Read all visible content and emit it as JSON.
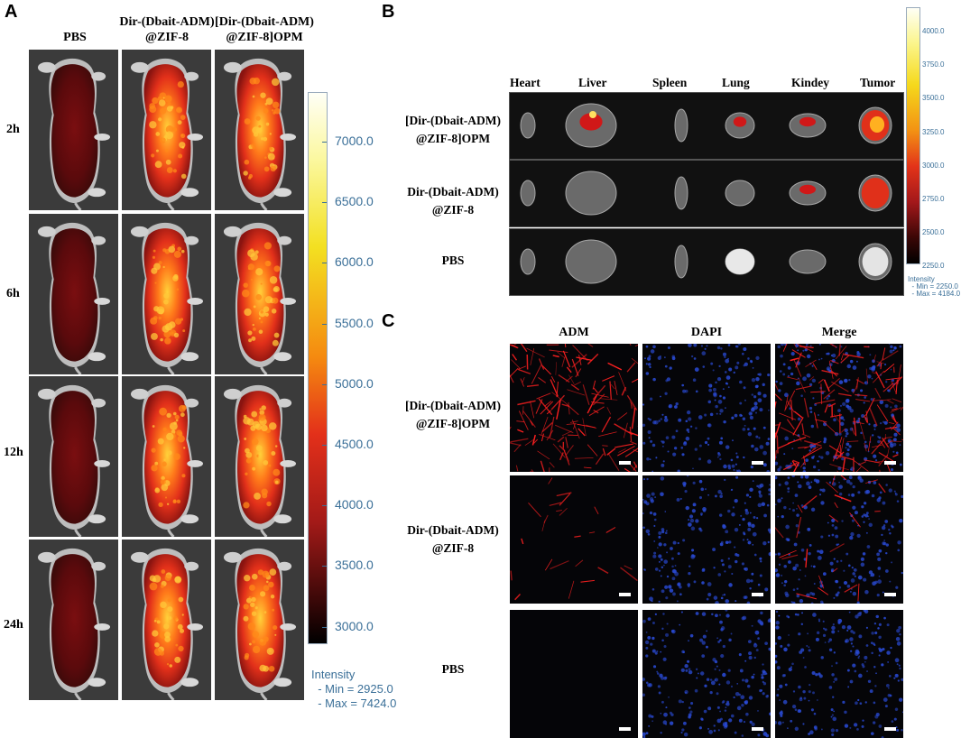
{
  "panelA": {
    "letter": "A",
    "columns": [
      "PBS",
      "Dir-(Dbait-ADM)\n@ZIF-8",
      "[Dir-(Dbait-ADM)\n@ZIF-8]OPM"
    ],
    "rows": [
      "2h",
      "6h",
      "12h",
      "24h"
    ],
    "colorbar": {
      "ticks": [
        "7000.0",
        "6500.0",
        "6000.0",
        "5500.0",
        "5000.0",
        "4500.0",
        "4000.0",
        "3500.0",
        "3000.0"
      ],
      "intensity_label": "Intensity",
      "min_text": "  - Min = 2925.0",
      "max_text": "  - Max = 7424.0"
    }
  },
  "panelB": {
    "letter": "B",
    "organs": [
      "Heart",
      "Liver",
      "Spleen",
      "Lung",
      "Kindey",
      "Tumor"
    ],
    "groups": [
      "[Dir-(Dbait-ADM)\n@ZIF-8]OPM",
      "Dir-(Dbait-ADM)\n@ZIF-8",
      "PBS"
    ],
    "colorbar": {
      "ticks": [
        "4000.0",
        "3750.0",
        "3500.0",
        "3250.0",
        "3000.0",
        "2750.0",
        "2500.0",
        "2250.0"
      ],
      "intensity_label": "Intensity",
      "min_text": "  - Min = 2250.0",
      "max_text": "  - Max = 4184.0"
    }
  },
  "panelC": {
    "letter": "C",
    "channels": [
      "ADM",
      "DAPI",
      "Merge"
    ],
    "groups": [
      "[Dir-(Dbait-ADM)\n@ZIF-8]OPM",
      "Dir-(Dbait-ADM)\n@ZIF-8",
      "PBS"
    ]
  },
  "colors": {
    "text": "#000000",
    "colorbar_text": "#3a6f98",
    "adm_red": "#ff2020",
    "dapi_blue": "#2a4bd6"
  }
}
